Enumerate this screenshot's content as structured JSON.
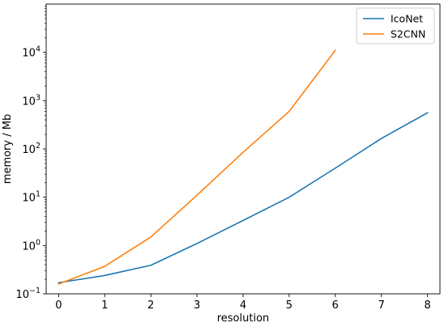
{
  "chart_data": {
    "type": "line",
    "xlabel": "resolution",
    "ylabel": "memory / Mb",
    "yscale": "log",
    "xlim": [
      -0.27,
      8.27
    ],
    "ylim": [
      0.1,
      100000
    ],
    "x_ticks": [
      0,
      1,
      2,
      3,
      4,
      5,
      6,
      7,
      8
    ],
    "x_tick_labels": [
      "0",
      "1",
      "2",
      "3",
      "4",
      "5",
      "6",
      "7",
      "8"
    ],
    "y_ticks": [
      {
        "value": 0.1,
        "base": "10",
        "exp": "−1"
      },
      {
        "value": 1,
        "base": "10",
        "exp": "0"
      },
      {
        "value": 10,
        "base": "10",
        "exp": "1"
      },
      {
        "value": 100,
        "base": "10",
        "exp": "2"
      },
      {
        "value": 1000,
        "base": "10",
        "exp": "3"
      },
      {
        "value": 10000,
        "base": "10",
        "exp": "4"
      }
    ],
    "grid": false,
    "legend": "top-right",
    "series": [
      {
        "name": "IcoNet",
        "color": "#1f77b4",
        "x": [
          0,
          1,
          2,
          3,
          4,
          5,
          6,
          7,
          8
        ],
        "values": [
          0.17,
          0.24,
          0.39,
          1.1,
          3.3,
          10,
          40,
          165,
          560
        ]
      },
      {
        "name": "S2CNN",
        "color": "#ff7f0e",
        "x": [
          0,
          1,
          2,
          3,
          4,
          5,
          6
        ],
        "values": [
          0.16,
          0.37,
          1.5,
          11,
          85,
          600,
          11000
        ]
      }
    ]
  }
}
